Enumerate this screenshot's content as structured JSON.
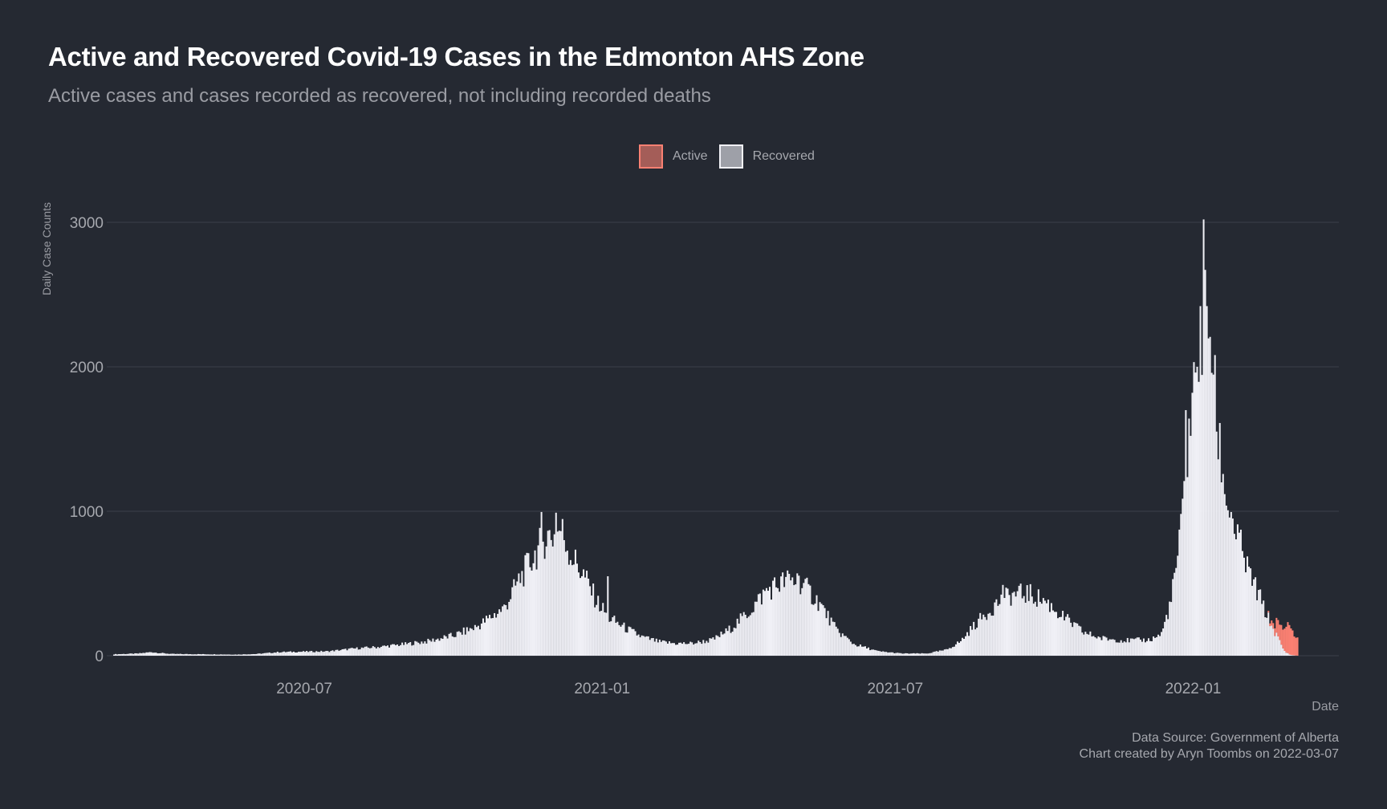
{
  "chart_data": {
    "type": "bar",
    "stacked": true,
    "title": "Active and Recovered Covid-19 Cases in the Edmonton AHS Zone",
    "subtitle": "Active cases and cases recorded as recovered, not including recorded deaths",
    "xlabel": "Date",
    "ylabel": "Daily Case Counts",
    "caption_lines": [
      "Data Source: Government of Alberta",
      "Chart created by Aryn Toombs on 2022-03-07"
    ],
    "ylim": [
      0,
      3000
    ],
    "yticks": [
      0,
      1000,
      2000,
      3000
    ],
    "xlim": [
      "2020-03-01",
      "2022-04-01"
    ],
    "xticks": [
      {
        "date": "2020-07-01",
        "label": "2020-07"
      },
      {
        "date": "2021-01-01",
        "label": "2021-01"
      },
      {
        "date": "2021-07-01",
        "label": "2021-07"
      },
      {
        "date": "2022-01-01",
        "label": "2022-01"
      }
    ],
    "legend": {
      "position": "top",
      "entries": [
        {
          "name": "Active",
          "color": "#fa8072"
        },
        {
          "name": "Recovered",
          "color": "#f0f0f6"
        }
      ]
    },
    "grid": "horizontal",
    "series": [
      {
        "name": "Recovered",
        "color": "#f0f0f6",
        "points": [
          [
            "2020-03-05",
            10
          ],
          [
            "2020-03-20",
            15
          ],
          [
            "2020-03-28",
            25
          ],
          [
            "2020-04-01",
            20
          ],
          [
            "2020-04-10",
            12
          ],
          [
            "2020-05-01",
            10
          ],
          [
            "2020-05-20",
            8
          ],
          [
            "2020-06-01",
            12
          ],
          [
            "2020-06-15",
            25
          ],
          [
            "2020-07-01",
            28
          ],
          [
            "2020-07-15",
            30
          ],
          [
            "2020-08-01",
            50
          ],
          [
            "2020-08-15",
            60
          ],
          [
            "2020-09-01",
            80
          ],
          [
            "2020-09-15",
            100
          ],
          [
            "2020-10-01",
            140
          ],
          [
            "2020-10-15",
            200
          ],
          [
            "2020-11-01",
            330
          ],
          [
            "2020-11-10",
            520
          ],
          [
            "2020-11-20",
            700
          ],
          [
            "2020-11-27",
            830
          ],
          [
            "2020-12-02",
            830
          ],
          [
            "2020-12-06",
            880
          ],
          [
            "2020-12-12",
            700
          ],
          [
            "2020-12-20",
            560
          ],
          [
            "2020-12-28",
            380
          ],
          [
            "2021-01-05",
            260
          ],
          [
            "2021-01-15",
            190
          ],
          [
            "2021-01-25",
            130
          ],
          [
            "2021-02-05",
            95
          ],
          [
            "2021-02-15",
            85
          ],
          [
            "2021-02-25",
            85
          ],
          [
            "2021-03-10",
            110
          ],
          [
            "2021-03-20",
            180
          ],
          [
            "2021-04-01",
            300
          ],
          [
            "2021-04-12",
            450
          ],
          [
            "2021-04-24",
            520
          ],
          [
            "2021-05-03",
            510
          ],
          [
            "2021-05-15",
            360
          ],
          [
            "2021-05-25",
            180
          ],
          [
            "2021-06-05",
            80
          ],
          [
            "2021-06-20",
            30
          ],
          [
            "2021-07-05",
            15
          ],
          [
            "2021-07-20",
            15
          ],
          [
            "2021-08-01",
            40
          ],
          [
            "2021-08-10",
            100
          ],
          [
            "2021-08-20",
            230
          ],
          [
            "2021-09-01",
            360
          ],
          [
            "2021-09-10",
            420
          ],
          [
            "2021-09-20",
            430
          ],
          [
            "2021-10-01",
            380
          ],
          [
            "2021-10-12",
            270
          ],
          [
            "2021-10-25",
            160
          ],
          [
            "2021-11-05",
            120
          ],
          [
            "2021-11-20",
            105
          ],
          [
            "2021-12-05",
            110
          ],
          [
            "2021-12-12",
            150
          ],
          [
            "2021-12-18",
            380
          ],
          [
            "2021-12-24",
            850
          ],
          [
            "2021-12-29",
            1550
          ],
          [
            "2022-01-02",
            1900
          ],
          [
            "2022-01-07",
            2350
          ],
          [
            "2022-01-11",
            2300
          ],
          [
            "2022-01-15",
            1600
          ],
          [
            "2022-01-20",
            1150
          ],
          [
            "2022-01-27",
            850
          ],
          [
            "2022-02-03",
            600
          ],
          [
            "2022-02-10",
            420
          ],
          [
            "2022-02-17",
            230
          ],
          [
            "2022-02-22",
            120
          ],
          [
            "2022-02-26",
            30
          ],
          [
            "2022-03-02",
            5
          ],
          [
            "2022-03-06",
            0
          ]
        ],
        "spikes": [
          [
            "2020-11-24",
            995
          ],
          [
            "2020-12-03",
            990
          ],
          [
            "2021-01-04",
            550
          ],
          [
            "2021-05-01",
            570
          ],
          [
            "2021-09-05",
            490
          ],
          [
            "2021-12-27",
            1700
          ],
          [
            "2021-12-31",
            1820
          ],
          [
            "2022-01-03",
            2000
          ],
          [
            "2022-01-05",
            2420
          ],
          [
            "2022-01-07",
            3020
          ],
          [
            "2022-01-09",
            2420
          ],
          [
            "2022-01-18",
            1200
          ]
        ]
      },
      {
        "name": "Active",
        "color": "#fa8072",
        "points": [
          [
            "2022-02-15",
            0
          ],
          [
            "2022-02-19",
            40
          ],
          [
            "2022-02-22",
            110
          ],
          [
            "2022-02-25",
            160
          ],
          [
            "2022-02-28",
            180
          ],
          [
            "2022-03-02",
            175
          ],
          [
            "2022-03-04",
            160
          ],
          [
            "2022-03-06",
            110
          ]
        ]
      }
    ]
  }
}
